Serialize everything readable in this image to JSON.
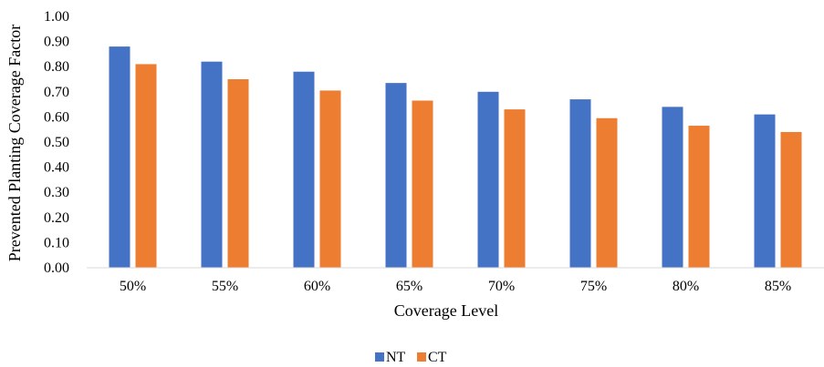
{
  "chart_data": {
    "type": "bar",
    "xlabel": "Coverage Level",
    "ylabel": "Prevented Planting Coverage Factor",
    "categories": [
      "50%",
      "55%",
      "60%",
      "65%",
      "70%",
      "75%",
      "80%",
      "85%"
    ],
    "ylim": [
      0,
      1.0
    ],
    "yticks": [
      "0.00",
      "0.10",
      "0.20",
      "0.30",
      "0.40",
      "0.50",
      "0.60",
      "0.70",
      "0.80",
      "0.90",
      "1.00"
    ],
    "grid": false,
    "legend": "bottom-center",
    "series": [
      {
        "name": "NT",
        "color": "#4472C4",
        "values": [
          0.88,
          0.82,
          0.78,
          0.735,
          0.7,
          0.67,
          0.64,
          0.61
        ]
      },
      {
        "name": "CT",
        "color": "#ED7D31",
        "values": [
          0.81,
          0.75,
          0.705,
          0.665,
          0.63,
          0.595,
          0.565,
          0.54
        ]
      }
    ]
  }
}
